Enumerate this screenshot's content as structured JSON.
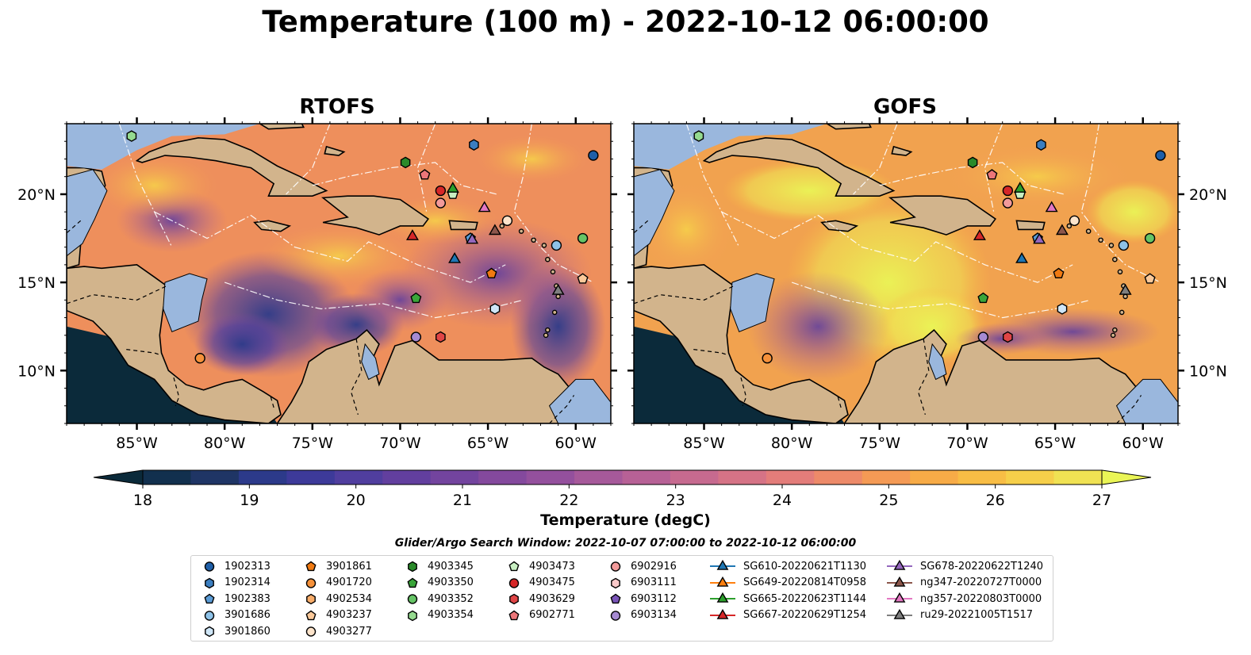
{
  "title": "Temperature (100 m) - 2022-10-12 06:00:00",
  "panels": [
    {
      "title": "RTOFS"
    },
    {
      "title": "GOFS"
    }
  ],
  "colors": {
    "ocean_background": "#8e9bd6",
    "land": "#d2b48c",
    "water_land": "#9ab7dd",
    "deep_cold": "#0b2a3a",
    "border": "#000000"
  },
  "chart_data": {
    "type": "heatmap",
    "variable": "Temperature (degC)",
    "depth": "100 m",
    "time": "2022-10-12 06:00:00",
    "x_ticks": [
      "85°W",
      "80°W",
      "75°W",
      "70°W",
      "65°W",
      "60°W"
    ],
    "x_tick_values": [
      -85,
      -80,
      -75,
      -70,
      -65,
      -60
    ],
    "y_ticks": [
      "20°N",
      "15°N",
      "10°N"
    ],
    "y_tick_values": [
      20,
      15,
      10
    ],
    "xlim": [
      -89,
      -58
    ],
    "ylim": [
      7,
      24
    ],
    "colorbar": {
      "label": "Temperature (degC)",
      "ticks": [
        18,
        19,
        20,
        21,
        22,
        23,
        24,
        25,
        26,
        27
      ],
      "range": [
        18,
        27
      ],
      "extend": "both",
      "colors": [
        "#0b2a3a",
        "#12304e",
        "#1f3565",
        "#2c3a8a",
        "#3d3a99",
        "#503e9e",
        "#623f9e",
        "#73449e",
        "#84499d",
        "#94509d",
        "#a6599a",
        "#b76196",
        "#c66a8f",
        "#d57386",
        "#e37d7a",
        "#ed8a69",
        "#f49a55",
        "#f7ab47",
        "#f8bd45",
        "#f6cf4a",
        "#f0e253",
        "#eaf556"
      ]
    },
    "legend_title": "Glider/Argo Search Window: 2022-10-07 07:00:00 to 2022-10-12 06:00:00",
    "legend": [
      {
        "label": "1902313",
        "marker": "circle",
        "color": "#1f5fa8"
      },
      {
        "label": "1902314",
        "marker": "hexagon",
        "color": "#3b7ec0"
      },
      {
        "label": "1902383",
        "marker": "pentagon",
        "color": "#5b9bd5"
      },
      {
        "label": "3901686",
        "marker": "circle",
        "color": "#8ec2e8"
      },
      {
        "label": "3901860",
        "marker": "hexagon",
        "color": "#cfe6f7"
      },
      {
        "label": "3901861",
        "marker": "pentagon",
        "color": "#f07a12"
      },
      {
        "label": "4901720",
        "marker": "circle",
        "color": "#f5913a"
      },
      {
        "label": "4902534",
        "marker": "hexagon",
        "color": "#f8ad6a"
      },
      {
        "label": "4903237",
        "marker": "pentagon",
        "color": "#fbc99a"
      },
      {
        "label": "4903277",
        "marker": "circle",
        "color": "#fde4cb"
      },
      {
        "label": "4903345",
        "marker": "hexagon",
        "color": "#2a8a2a"
      },
      {
        "label": "4903350",
        "marker": "pentagon",
        "color": "#3aa63a"
      },
      {
        "label": "4903352",
        "marker": "circle",
        "color": "#66c466"
      },
      {
        "label": "4903354",
        "marker": "hexagon",
        "color": "#95da8f"
      },
      {
        "label": "4903473",
        "marker": "pentagon",
        "color": "#c8efc2"
      },
      {
        "label": "4903475",
        "marker": "circle",
        "color": "#d62728"
      },
      {
        "label": "4903629",
        "marker": "hexagon",
        "color": "#e04546"
      },
      {
        "label": "6902771",
        "marker": "pentagon",
        "color": "#ec7679"
      },
      {
        "label": "6902916",
        "marker": "circle",
        "color": "#f29a9a"
      },
      {
        "label": "6903111",
        "marker": "hexagon",
        "color": "#f9c9c9"
      },
      {
        "label": "6903112",
        "marker": "pentagon",
        "color": "#7a55b8"
      },
      {
        "label": "6903134",
        "marker": "circle",
        "color": "#a68ad2"
      },
      {
        "label": "SG610-20220621T1130",
        "marker": "triangle",
        "color": "#1f77b4"
      },
      {
        "label": "SG649-20220814T0958",
        "marker": "triangle",
        "color": "#ff7f0e"
      },
      {
        "label": "SG665-20220623T1144",
        "marker": "triangle",
        "color": "#2ca02c"
      },
      {
        "label": "SG667-20220629T1254",
        "marker": "triangle",
        "color": "#d62728"
      },
      {
        "label": "SG678-20220622T1240",
        "marker": "triangle",
        "color": "#9467bd"
      },
      {
        "label": "ng347-20220727T0000",
        "marker": "triangle",
        "color": "#8c564b"
      },
      {
        "label": "ng357-20220803T0000",
        "marker": "triangle",
        "color": "#e377c2"
      },
      {
        "label": "ru29-20221005T1517",
        "marker": "triangle",
        "color": "#7f7f7f"
      }
    ],
    "points": [
      {
        "id": "1902313",
        "lon": -59.0,
        "lat": 22.2
      },
      {
        "id": "1902314",
        "lon": -65.8,
        "lat": 22.8
      },
      {
        "id": "1902383",
        "lon": -66.0,
        "lat": 17.5
      },
      {
        "id": "3901686",
        "lon": -61.1,
        "lat": 17.1
      },
      {
        "id": "3901860",
        "lon": -64.6,
        "lat": 13.5
      },
      {
        "id": "3901861",
        "lon": -64.8,
        "lat": 15.5
      },
      {
        "id": "4901720",
        "lon": -81.4,
        "lat": 10.7
      },
      {
        "id": "4903237",
        "lon": -59.6,
        "lat": 15.2
      },
      {
        "id": "4903277",
        "lon": -63.9,
        "lat": 18.5
      },
      {
        "id": "4903345",
        "lon": -69.7,
        "lat": 21.8
      },
      {
        "id": "4903350",
        "lon": -69.1,
        "lat": 14.1
      },
      {
        "id": "4903352",
        "lon": -59.6,
        "lat": 17.5
      },
      {
        "id": "4903354",
        "lon": -85.3,
        "lat": 23.3
      },
      {
        "id": "4903473",
        "lon": -67.0,
        "lat": 20.0
      },
      {
        "id": "4903475",
        "lon": -67.7,
        "lat": 20.2
      },
      {
        "id": "4903629",
        "lon": -67.7,
        "lat": 11.9
      },
      {
        "id": "6902771",
        "lon": -68.6,
        "lat": 21.1
      },
      {
        "id": "6902916",
        "lon": -67.7,
        "lat": 19.5
      },
      {
        "id": "6903134",
        "lon": -69.1,
        "lat": 11.9
      },
      {
        "id": "SG610-20220621T1130",
        "lon": -66.9,
        "lat": 16.3
      },
      {
        "id": "SG665-20220623T1144",
        "lon": -67.0,
        "lat": 20.3
      },
      {
        "id": "SG667-20220629T1254",
        "lon": -69.3,
        "lat": 17.6
      },
      {
        "id": "SG678-20220622T1240",
        "lon": -65.9,
        "lat": 17.4
      },
      {
        "id": "ng347-20220727T0000",
        "lon": -64.6,
        "lat": 17.9
      },
      {
        "id": "ng357-20220803T0000",
        "lon": -65.2,
        "lat": 19.2
      },
      {
        "id": "ru29-20221005T1517",
        "lon": -61.0,
        "lat": 14.5
      }
    ]
  }
}
